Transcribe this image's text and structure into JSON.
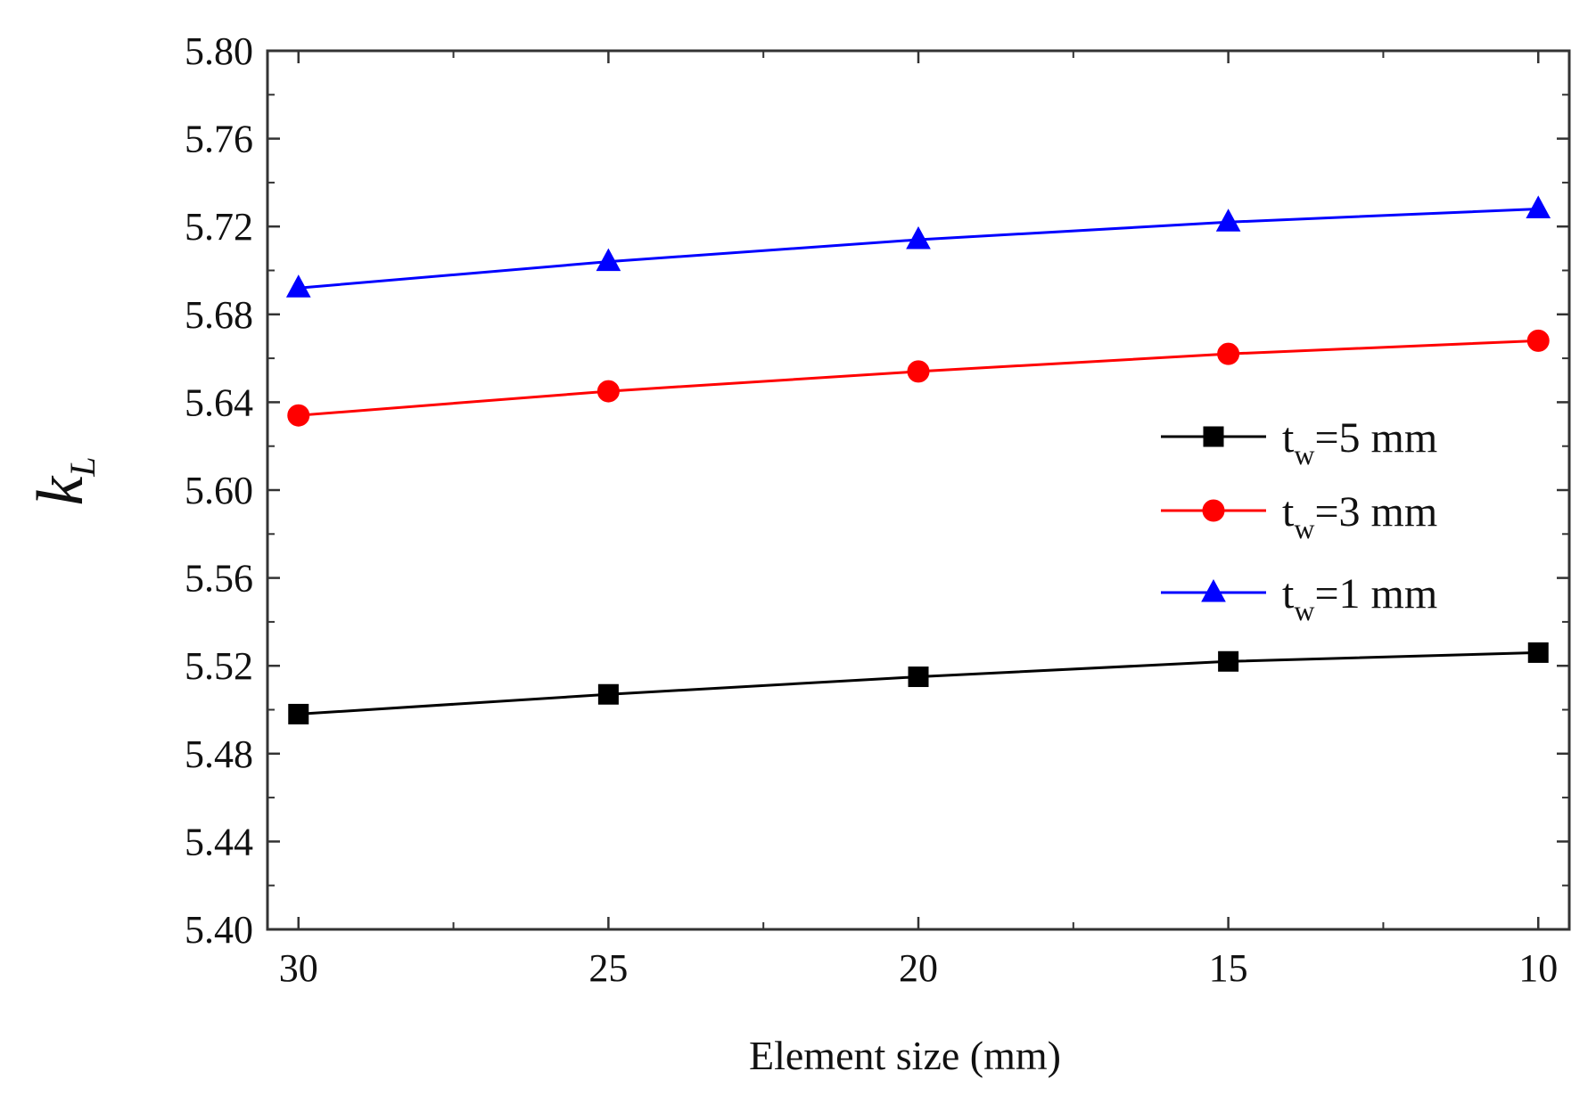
{
  "chart_data": {
    "type": "line",
    "x": [
      30,
      25,
      20,
      15,
      10
    ],
    "xlim": [
      30.5,
      9.5
    ],
    "xticks": [
      30,
      25,
      20,
      15,
      10
    ],
    "xtick_labels": [
      "30",
      "25",
      "20",
      "15",
      "10"
    ],
    "ylim": [
      5.4,
      5.8
    ],
    "yticks": [
      5.4,
      5.44,
      5.48,
      5.52,
      5.56,
      5.6,
      5.64,
      5.68,
      5.72,
      5.76,
      5.8
    ],
    "ytick_labels": [
      "5.40",
      "5.44",
      "5.48",
      "5.52",
      "5.56",
      "5.60",
      "5.64",
      "5.68",
      "5.72",
      "5.76",
      "5.80"
    ],
    "xlabel": "Element size (mm)",
    "ylabel": {
      "main": "k",
      "sub": "L"
    },
    "legend_position": "center-right",
    "series": [
      {
        "name": "tw=5 mm",
        "label_main": "t",
        "label_sub": "w",
        "label_rest": "=5 mm",
        "color": "#000000",
        "marker": "square",
        "values": [
          5.498,
          5.507,
          5.515,
          5.522,
          5.526
        ]
      },
      {
        "name": "tw=3 mm",
        "label_main": "t",
        "label_sub": "w",
        "label_rest": "=3 mm",
        "color": "#ff0000",
        "marker": "circle",
        "values": [
          5.634,
          5.645,
          5.654,
          5.662,
          5.668
        ]
      },
      {
        "name": "tw=1 mm",
        "label_main": "t",
        "label_sub": "w",
        "label_rest": "=1 mm",
        "color": "#0000ff",
        "marker": "triangle",
        "values": [
          5.692,
          5.704,
          5.714,
          5.722,
          5.728
        ]
      }
    ]
  }
}
